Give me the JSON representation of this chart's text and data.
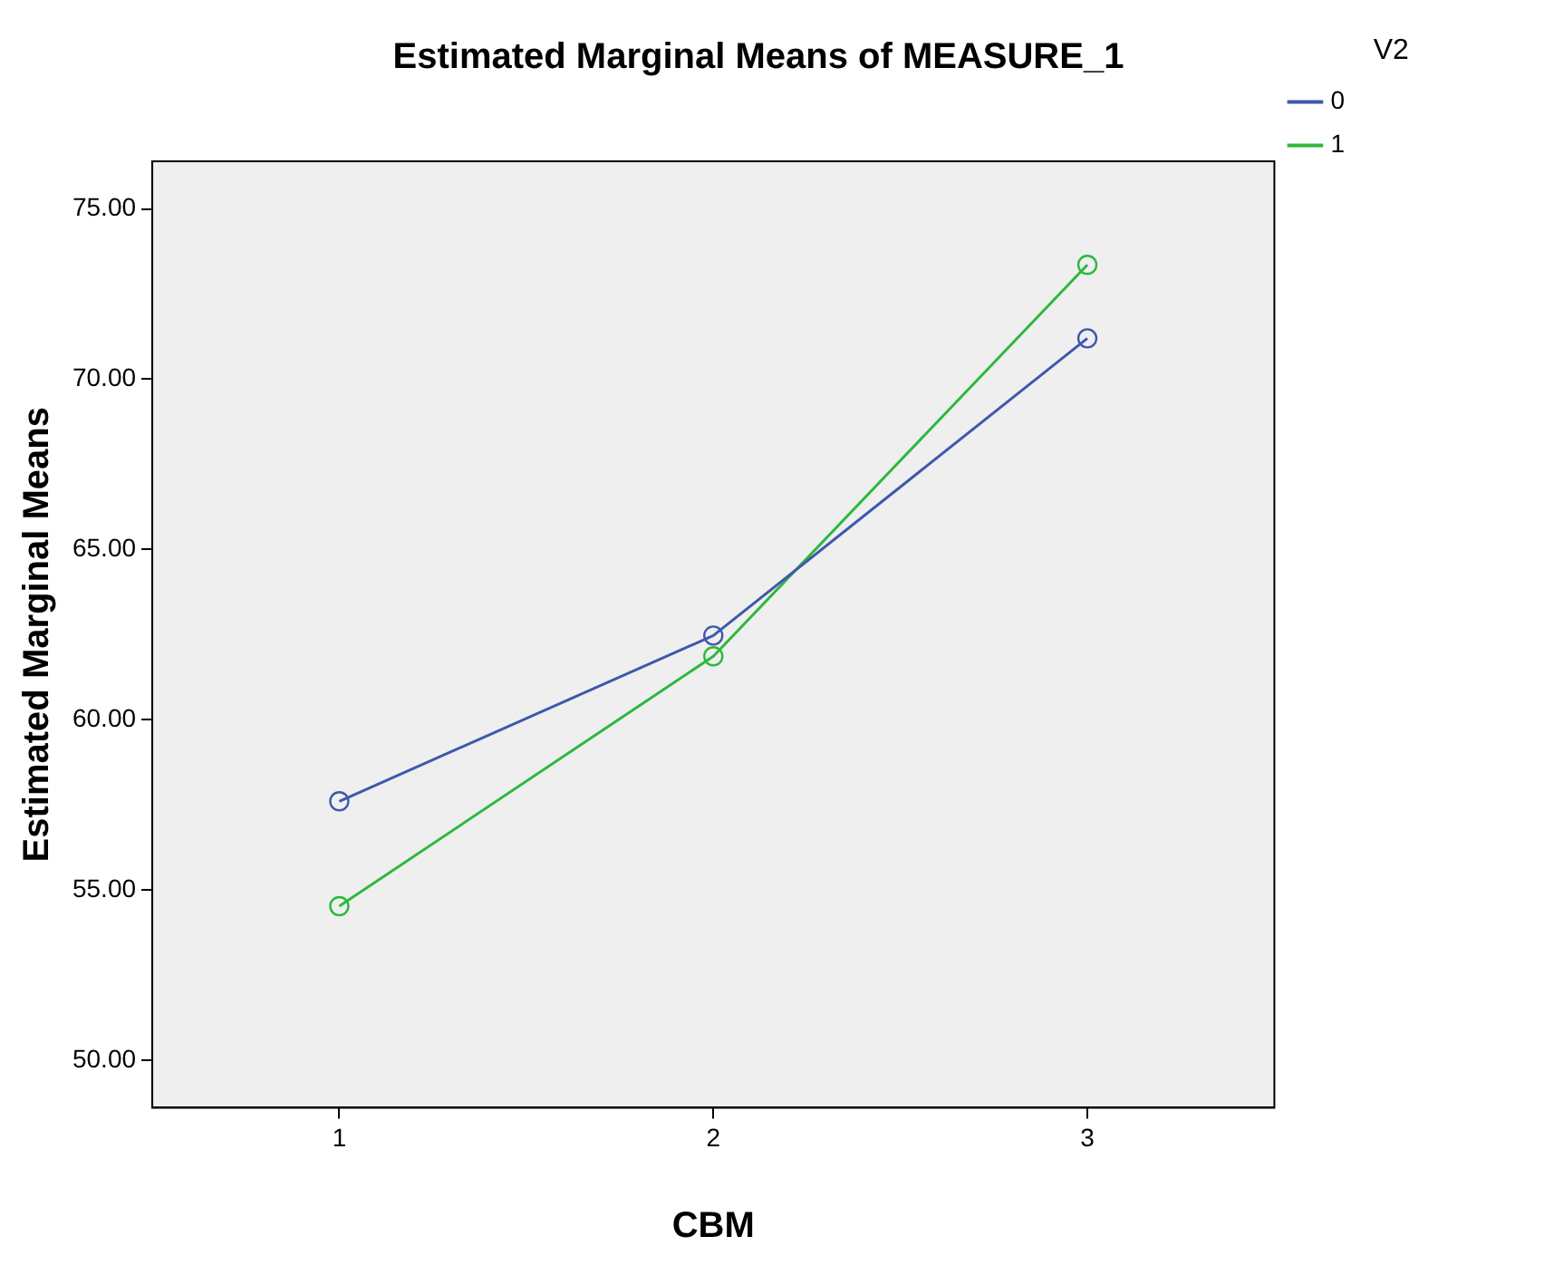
{
  "chart_data": {
    "type": "line",
    "title": "Estimated Marginal Means of MEASURE_1",
    "xlabel": "CBM",
    "ylabel": "Estimated Marginal Means",
    "legend_title": "V2",
    "categories": [
      "1",
      "2",
      "3"
    ],
    "series": [
      {
        "name": "0",
        "color": "#3e58ac",
        "values": [
          57.6,
          62.47,
          71.2
        ]
      },
      {
        "name": "1",
        "color": "#2db83d",
        "values": [
          54.52,
          61.86,
          73.36
        ]
      }
    ],
    "ylim": [
      48.6,
      76.4
    ],
    "yticks": [
      {
        "value": 50,
        "label": "50.00"
      },
      {
        "value": 55,
        "label": "55.00"
      },
      {
        "value": 60,
        "label": "60.00"
      },
      {
        "value": 65,
        "label": "65.00"
      },
      {
        "value": 70,
        "label": "70.00"
      },
      {
        "value": 75,
        "label": "75.00"
      }
    ],
    "grid": false,
    "legend": "top right",
    "marker": "circle",
    "line_style": "solid"
  }
}
